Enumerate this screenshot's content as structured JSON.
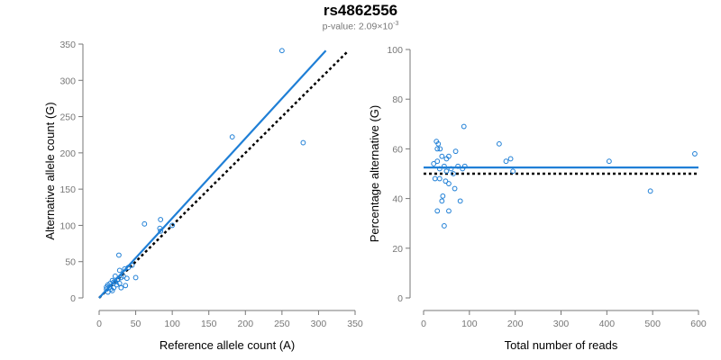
{
  "header": {
    "title": "rs4862556",
    "subtitle_prefix": "p-value: 2.09",
    "subtitle_mult": "×10",
    "subtitle_exp": "-3"
  },
  "colors": {
    "accent": "#1f7fd6",
    "reference_line": "#000000",
    "axis": "#777777"
  },
  "chart_data": [
    {
      "type": "scatter",
      "xlabel": "Reference allele count (A)",
      "ylabel": "Alternative allele count (G)",
      "xlim": [
        0,
        350
      ],
      "ylim": [
        0,
        350
      ],
      "xticks": [
        0,
        50,
        100,
        150,
        200,
        250,
        300,
        350
      ],
      "yticks": [
        0,
        50,
        100,
        150,
        200,
        250,
        300,
        350
      ],
      "points": [
        [
          250,
          341
        ],
        [
          182,
          222
        ],
        [
          279,
          214
        ],
        [
          62,
          102
        ],
        [
          84,
          108
        ],
        [
          83,
          96
        ],
        [
          84,
          92
        ],
        [
          100,
          100
        ],
        [
          27,
          59
        ],
        [
          45,
          45
        ],
        [
          40,
          42
        ],
        [
          35,
          40
        ],
        [
          28,
          38
        ],
        [
          30,
          28
        ],
        [
          22,
          30
        ],
        [
          25,
          25
        ],
        [
          20,
          22
        ],
        [
          18,
          24
        ],
        [
          15,
          20
        ],
        [
          12,
          18
        ],
        [
          14,
          15
        ],
        [
          10,
          12
        ],
        [
          16,
          12
        ],
        [
          20,
          14
        ],
        [
          24,
          18
        ],
        [
          28,
          20
        ],
        [
          33,
          30
        ],
        [
          38,
          27
        ],
        [
          50,
          28
        ],
        [
          12,
          8
        ],
        [
          18,
          10
        ],
        [
          22,
          22
        ],
        [
          30,
          14
        ],
        [
          36,
          17
        ],
        [
          10,
          15
        ],
        [
          26,
          26
        ]
      ],
      "fit_line": {
        "x": [
          0,
          310
        ],
        "y": [
          0,
          341
        ]
      },
      "reference_line": {
        "x": [
          0,
          340
        ],
        "y": [
          0,
          340
        ]
      },
      "grid": false
    },
    {
      "type": "scatter",
      "xlabel": "Total number of reads",
      "ylabel": "Percentage alternative (G)",
      "xlim": [
        0,
        600
      ],
      "ylim": [
        0,
        100
      ],
      "xticks": [
        0,
        100,
        200,
        300,
        400,
        500,
        600
      ],
      "yticks": [
        0,
        20,
        40,
        60,
        80,
        100
      ],
      "points": [
        [
          28,
          63
        ],
        [
          32,
          62
        ],
        [
          36,
          60
        ],
        [
          30,
          60
        ],
        [
          40,
          57
        ],
        [
          55,
          57
        ],
        [
          50,
          56
        ],
        [
          70,
          59
        ],
        [
          88,
          69
        ],
        [
          165,
          62
        ],
        [
          30,
          55
        ],
        [
          22,
          54
        ],
        [
          45,
          53
        ],
        [
          60,
          52
        ],
        [
          75,
          53
        ],
        [
          85,
          52
        ],
        [
          90,
          53
        ],
        [
          180,
          55
        ],
        [
          190,
          56
        ],
        [
          25,
          48
        ],
        [
          35,
          48
        ],
        [
          48,
          47
        ],
        [
          55,
          46
        ],
        [
          42,
          41
        ],
        [
          40,
          39
        ],
        [
          30,
          35
        ],
        [
          55,
          35
        ],
        [
          68,
          44
        ],
        [
          80,
          39
        ],
        [
          45,
          29
        ],
        [
          405,
          55
        ],
        [
          495,
          43
        ],
        [
          592,
          58
        ],
        [
          65,
          50
        ],
        [
          35,
          52
        ],
        [
          195,
          51
        ],
        [
          50,
          51
        ]
      ],
      "fit_line": {
        "x": [
          0,
          600
        ],
        "y": [
          52.5,
          52.5
        ]
      },
      "reference_line": {
        "x": [
          0,
          600
        ],
        "y": [
          50,
          50
        ]
      },
      "grid": false
    }
  ]
}
